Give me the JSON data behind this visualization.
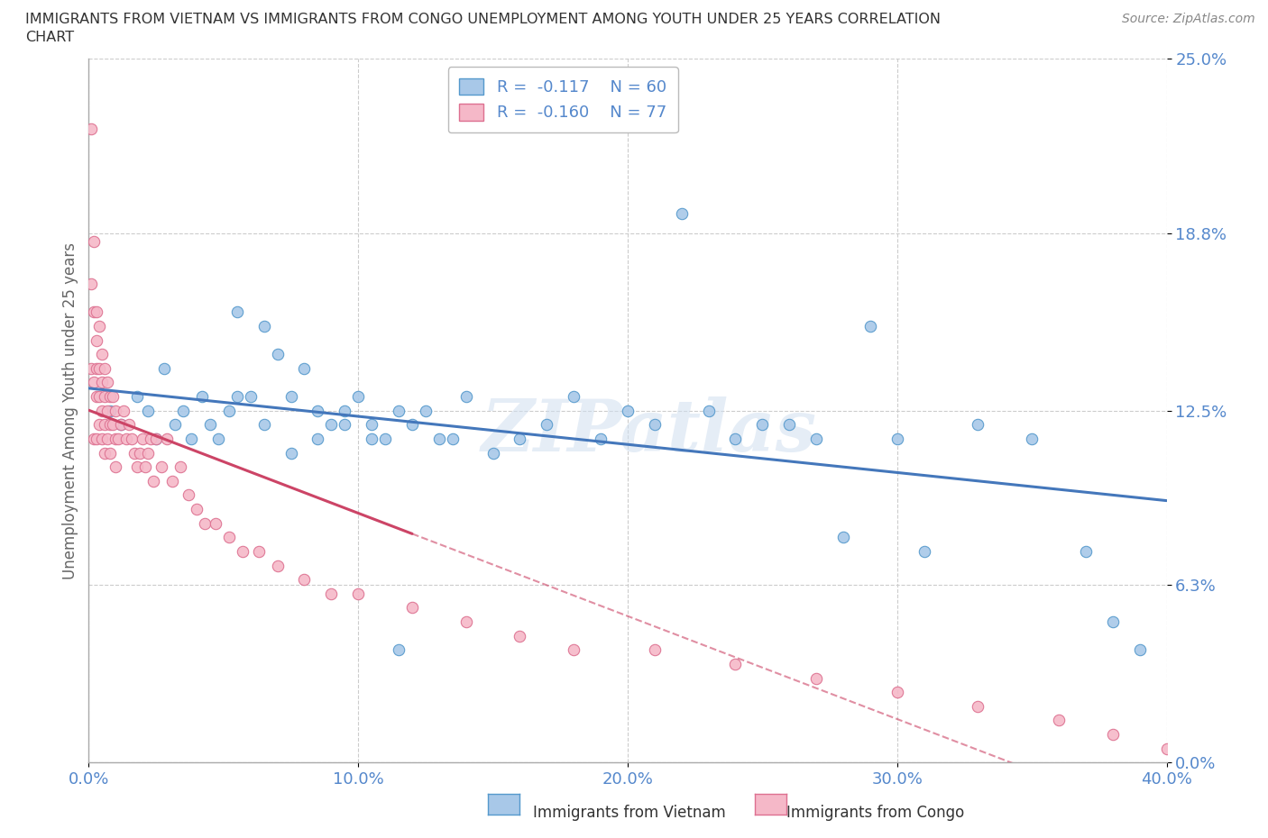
{
  "title_line1": "IMMIGRANTS FROM VIETNAM VS IMMIGRANTS FROM CONGO UNEMPLOYMENT AMONG YOUTH UNDER 25 YEARS CORRELATION",
  "title_line2": "CHART",
  "source": "Source: ZipAtlas.com",
  "ylabel": "Unemployment Among Youth under 25 years",
  "xlim": [
    0.0,
    0.4
  ],
  "ylim": [
    0.0,
    0.25
  ],
  "xticks": [
    0.0,
    0.1,
    0.2,
    0.3,
    0.4
  ],
  "xticklabels": [
    "0.0%",
    "10.0%",
    "20.0%",
    "30.0%",
    "40.0%"
  ],
  "ytick_positions": [
    0.0,
    0.063,
    0.125,
    0.188,
    0.25
  ],
  "ytick_labels": [
    "0.0%",
    "6.3%",
    "12.5%",
    "18.8%",
    "25.0%"
  ],
  "watermark": "ZIPatlas",
  "legend_R_vietnam": "-0.117",
  "legend_N_vietnam": "60",
  "legend_R_congo": "-0.160",
  "legend_N_congo": "77",
  "vietnam_scatter_color": "#a8c8e8",
  "vietnam_edge_color": "#5599cc",
  "congo_scatter_color": "#f5b8c8",
  "congo_edge_color": "#dd7090",
  "vietnam_line_color": "#4477bb",
  "congo_line_color": "#cc4466",
  "background_color": "#ffffff",
  "grid_color": "#cccccc",
  "tick_color": "#5588cc",
  "title_color": "#333333",
  "vietnam_scatter_x": [
    0.008,
    0.012,
    0.018,
    0.022,
    0.028,
    0.032,
    0.038,
    0.042,
    0.048,
    0.052,
    0.055,
    0.06,
    0.065,
    0.07,
    0.075,
    0.08,
    0.085,
    0.09,
    0.095,
    0.1,
    0.105,
    0.11,
    0.115,
    0.12,
    0.13,
    0.14,
    0.15,
    0.16,
    0.17,
    0.18,
    0.19,
    0.2,
    0.21,
    0.22,
    0.23,
    0.24,
    0.25,
    0.26,
    0.27,
    0.28,
    0.29,
    0.3,
    0.31,
    0.33,
    0.35,
    0.37,
    0.38,
    0.39,
    0.025,
    0.035,
    0.045,
    0.055,
    0.065,
    0.075,
    0.085,
    0.095,
    0.105,
    0.115,
    0.125,
    0.135
  ],
  "vietnam_scatter_y": [
    0.125,
    0.12,
    0.13,
    0.125,
    0.14,
    0.12,
    0.115,
    0.13,
    0.115,
    0.125,
    0.16,
    0.13,
    0.155,
    0.145,
    0.13,
    0.14,
    0.125,
    0.12,
    0.125,
    0.13,
    0.12,
    0.115,
    0.125,
    0.12,
    0.115,
    0.13,
    0.11,
    0.115,
    0.12,
    0.13,
    0.115,
    0.125,
    0.12,
    0.195,
    0.125,
    0.115,
    0.12,
    0.12,
    0.115,
    0.08,
    0.155,
    0.115,
    0.075,
    0.12,
    0.115,
    0.075,
    0.05,
    0.04,
    0.115,
    0.125,
    0.12,
    0.13,
    0.12,
    0.11,
    0.115,
    0.12,
    0.115,
    0.04,
    0.125,
    0.115
  ],
  "congo_scatter_x": [
    0.001,
    0.001,
    0.001,
    0.002,
    0.002,
    0.002,
    0.002,
    0.003,
    0.003,
    0.003,
    0.003,
    0.003,
    0.004,
    0.004,
    0.004,
    0.004,
    0.005,
    0.005,
    0.005,
    0.005,
    0.006,
    0.006,
    0.006,
    0.006,
    0.007,
    0.007,
    0.007,
    0.008,
    0.008,
    0.008,
    0.009,
    0.009,
    0.01,
    0.01,
    0.01,
    0.011,
    0.012,
    0.013,
    0.014,
    0.015,
    0.016,
    0.017,
    0.018,
    0.019,
    0.02,
    0.021,
    0.022,
    0.023,
    0.024,
    0.025,
    0.027,
    0.029,
    0.031,
    0.034,
    0.037,
    0.04,
    0.043,
    0.047,
    0.052,
    0.057,
    0.063,
    0.07,
    0.08,
    0.09,
    0.1,
    0.12,
    0.14,
    0.16,
    0.18,
    0.21,
    0.24,
    0.27,
    0.3,
    0.33,
    0.36,
    0.38,
    0.4
  ],
  "congo_scatter_y": [
    0.225,
    0.17,
    0.14,
    0.185,
    0.16,
    0.135,
    0.115,
    0.16,
    0.15,
    0.14,
    0.13,
    0.115,
    0.155,
    0.14,
    0.13,
    0.12,
    0.145,
    0.135,
    0.125,
    0.115,
    0.14,
    0.13,
    0.12,
    0.11,
    0.135,
    0.125,
    0.115,
    0.13,
    0.12,
    0.11,
    0.13,
    0.12,
    0.125,
    0.115,
    0.105,
    0.115,
    0.12,
    0.125,
    0.115,
    0.12,
    0.115,
    0.11,
    0.105,
    0.11,
    0.115,
    0.105,
    0.11,
    0.115,
    0.1,
    0.115,
    0.105,
    0.115,
    0.1,
    0.105,
    0.095,
    0.09,
    0.085,
    0.085,
    0.08,
    0.075,
    0.075,
    0.07,
    0.065,
    0.06,
    0.06,
    0.055,
    0.05,
    0.045,
    0.04,
    0.04,
    0.035,
    0.03,
    0.025,
    0.02,
    0.015,
    0.01,
    0.005
  ]
}
